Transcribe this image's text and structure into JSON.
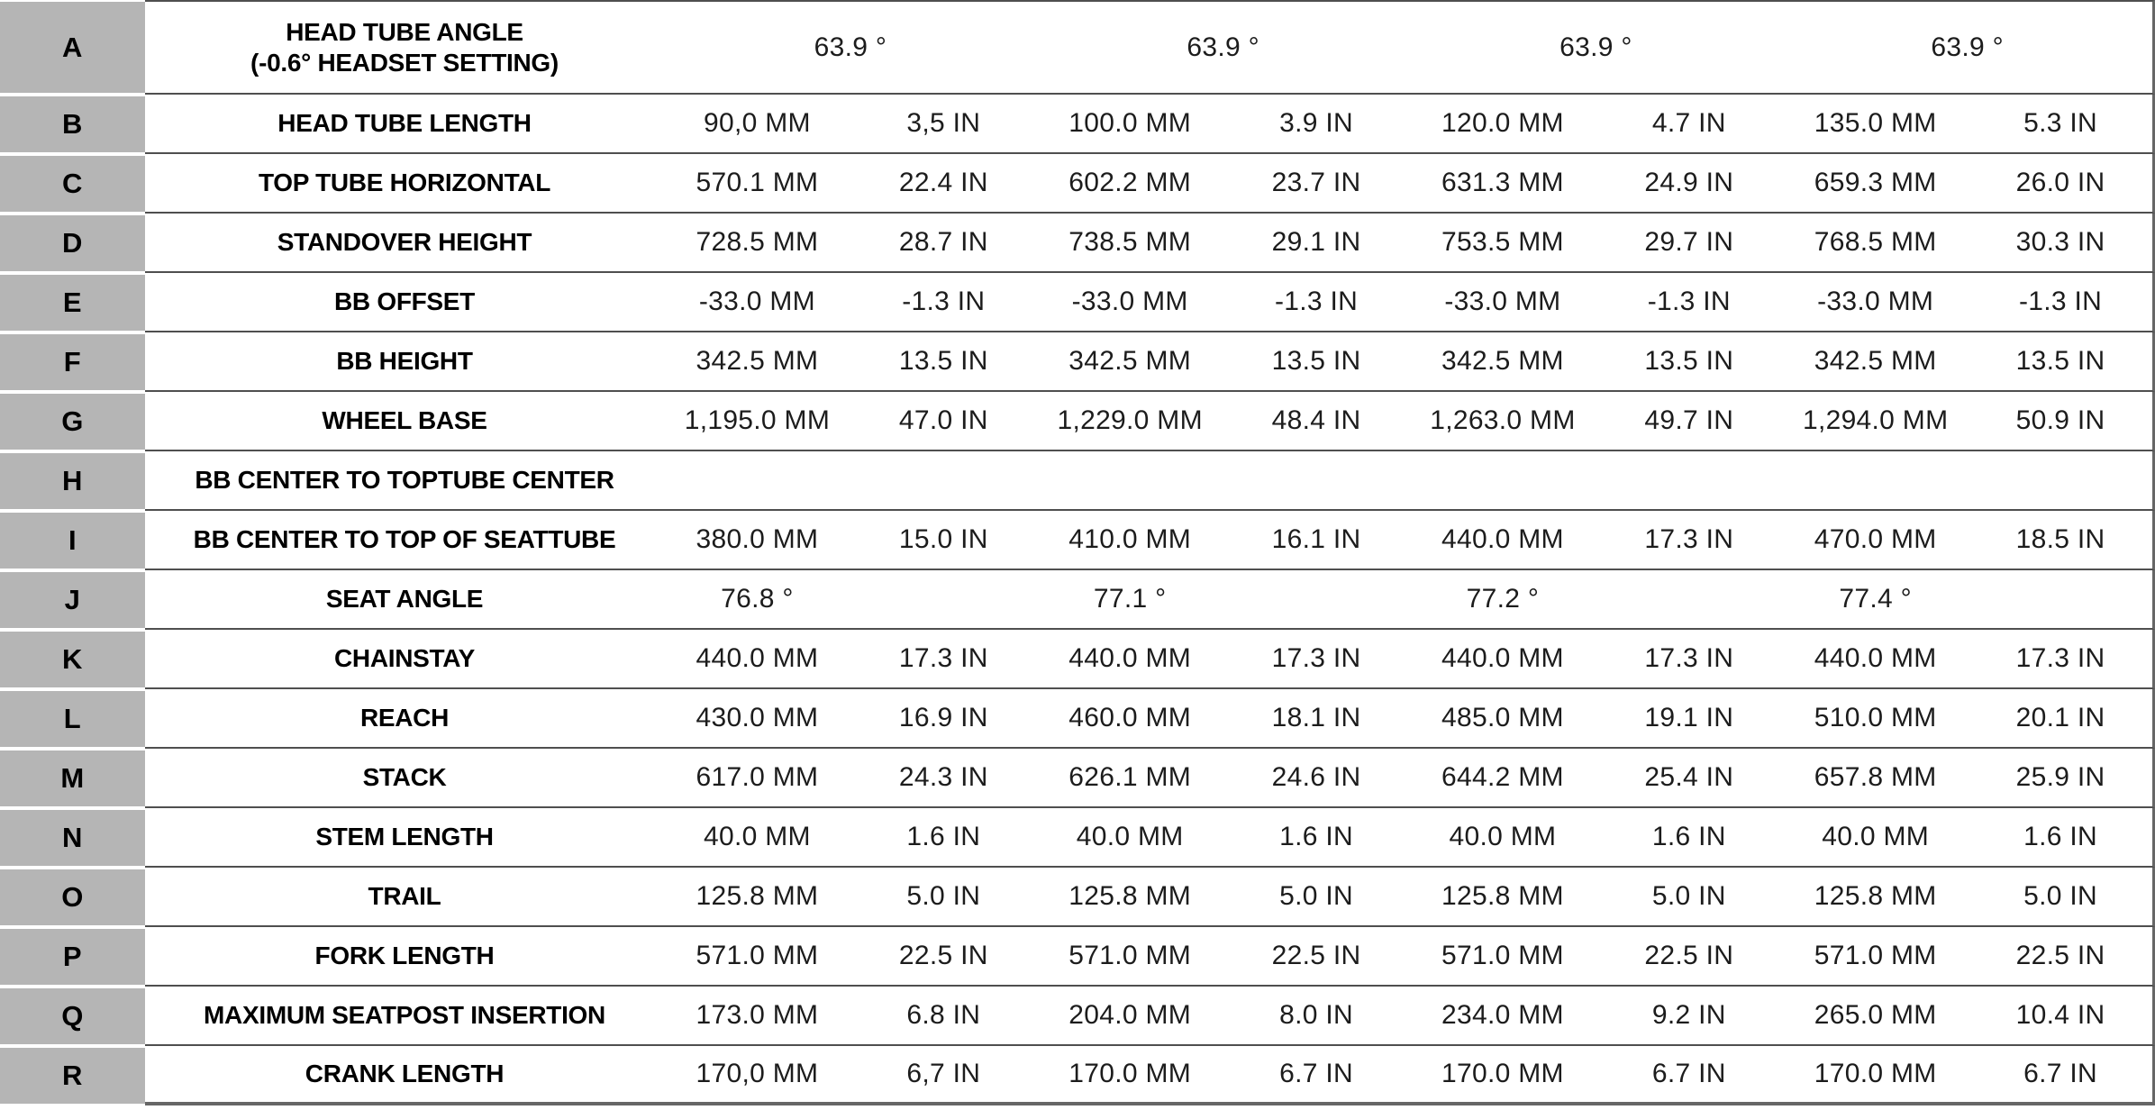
{
  "styles": {
    "letter_column_bg": "#b5b5b5",
    "grid_line_color": "#4f4f4f",
    "outer_line_color": "#666666",
    "label_text_color": "#000000",
    "value_text_color": "#1c1c1c"
  },
  "chart_data": {
    "type": "table",
    "description_columns": [
      "row letter",
      "measurement label",
      "size1 MM",
      "size1 IN",
      "size2 MM",
      "size2 IN",
      "size3 MM",
      "size3 IN",
      "size4 MM",
      "size4 IN"
    ],
    "rows": [
      {
        "letter": "A",
        "label": "HEAD TUBE ANGLE",
        "label2": "(-0.6° HEADSET SETTING)",
        "span": 2,
        "values": [
          "63.9 °",
          "63.9 °",
          "63.9 °",
          "63.9 °"
        ]
      },
      {
        "letter": "B",
        "label": "HEAD TUBE LENGTH",
        "span": 1,
        "values": [
          "90,0 MM",
          "3,5 IN",
          "100.0 MM",
          "3.9 IN",
          "120.0 MM",
          "4.7 IN",
          "135.0 MM",
          "5.3 IN"
        ]
      },
      {
        "letter": "C",
        "label": "TOP TUBE HORIZONTAL",
        "span": 1,
        "values": [
          "570.1 MM",
          "22.4 IN",
          "602.2 MM",
          "23.7 IN",
          "631.3 MM",
          "24.9 IN",
          "659.3 MM",
          "26.0 IN"
        ]
      },
      {
        "letter": "D",
        "label": "STANDOVER HEIGHT",
        "span": 1,
        "values": [
          "728.5 MM",
          "28.7 IN",
          "738.5 MM",
          "29.1 IN",
          "753.5 MM",
          "29.7 IN",
          "768.5 MM",
          "30.3 IN"
        ]
      },
      {
        "letter": "E",
        "label": "BB OFFSET",
        "span": 1,
        "values": [
          "-33.0 MM",
          "-1.3 IN",
          "-33.0 MM",
          "-1.3 IN",
          "-33.0 MM",
          "-1.3 IN",
          "-33.0 MM",
          "-1.3 IN"
        ]
      },
      {
        "letter": "F",
        "label": "BB HEIGHT",
        "span": 1,
        "values": [
          "342.5 MM",
          "13.5 IN",
          "342.5 MM",
          "13.5 IN",
          "342.5 MM",
          "13.5 IN",
          "342.5 MM",
          "13.5 IN"
        ]
      },
      {
        "letter": "G",
        "label": "WHEEL BASE",
        "span": 1,
        "values": [
          "1,195.0 MM",
          "47.0 IN",
          "1,229.0 MM",
          "48.4 IN",
          "1,263.0 MM",
          "49.7 IN",
          "1,294.0 MM",
          "50.9 IN"
        ]
      },
      {
        "letter": "H",
        "label": "BB CENTER TO TOPTUBE CENTER",
        "span": 1,
        "values": [
          "",
          "",
          "",
          "",
          "",
          "",
          "",
          ""
        ]
      },
      {
        "letter": "I",
        "label": "BB CENTER TO TOP OF SEATTUBE",
        "span": 1,
        "values": [
          "380.0 MM",
          "15.0 IN",
          "410.0 MM",
          "16.1 IN",
          "440.0 MM",
          "17.3 IN",
          "470.0 MM",
          "18.5 IN"
        ]
      },
      {
        "letter": "J",
        "label": "SEAT ANGLE",
        "span": 1,
        "values": [
          "76.8 °",
          "",
          "77.1 °",
          "",
          "77.2 °",
          "",
          "77.4 °",
          ""
        ]
      },
      {
        "letter": "K",
        "label": "CHAINSTAY",
        "span": 1,
        "values": [
          "440.0 MM",
          "17.3 IN",
          "440.0 MM",
          "17.3 IN",
          "440.0 MM",
          "17.3 IN",
          "440.0 MM",
          "17.3 IN"
        ]
      },
      {
        "letter": "L",
        "label": "REACH",
        "span": 1,
        "values": [
          "430.0 MM",
          "16.9 IN",
          "460.0 MM",
          "18.1 IN",
          "485.0 MM",
          "19.1 IN",
          "510.0 MM",
          "20.1 IN"
        ]
      },
      {
        "letter": "M",
        "label": "STACK",
        "span": 1,
        "values": [
          "617.0 MM",
          "24.3 IN",
          "626.1 MM",
          "24.6 IN",
          "644.2 MM",
          "25.4 IN",
          "657.8 MM",
          "25.9 IN"
        ]
      },
      {
        "letter": "N",
        "label": "STEM LENGTH",
        "span": 1,
        "values": [
          "40.0 MM",
          "1.6 IN",
          "40.0 MM",
          "1.6 IN",
          "40.0 MM",
          "1.6 IN",
          "40.0 MM",
          "1.6 IN"
        ]
      },
      {
        "letter": "O",
        "label": "TRAIL",
        "span": 1,
        "values": [
          "125.8 MM",
          "5.0 IN",
          "125.8 MM",
          "5.0 IN",
          "125.8 MM",
          "5.0 IN",
          "125.8 MM",
          "5.0 IN"
        ]
      },
      {
        "letter": "P",
        "label": "FORK LENGTH",
        "span": 1,
        "values": [
          "571.0 MM",
          "22.5 IN",
          "571.0 MM",
          "22.5 IN",
          "571.0 MM",
          "22.5 IN",
          "571.0 MM",
          "22.5 IN"
        ]
      },
      {
        "letter": "Q",
        "label": "MAXIMUM SEATPOST INSERTION",
        "span": 1,
        "values": [
          "173.0 MM",
          "6.8 IN",
          "204.0 MM",
          "8.0 IN",
          "234.0 MM",
          "9.2 IN",
          "265.0 MM",
          "10.4 IN"
        ]
      },
      {
        "letter": "R",
        "label": "CRANK LENGTH",
        "span": 1,
        "values": [
          "170,0 MM",
          "6,7 IN",
          "170.0 MM",
          "6.7 IN",
          "170.0 MM",
          "6.7 IN",
          "170.0 MM",
          "6.7 IN"
        ]
      }
    ]
  }
}
